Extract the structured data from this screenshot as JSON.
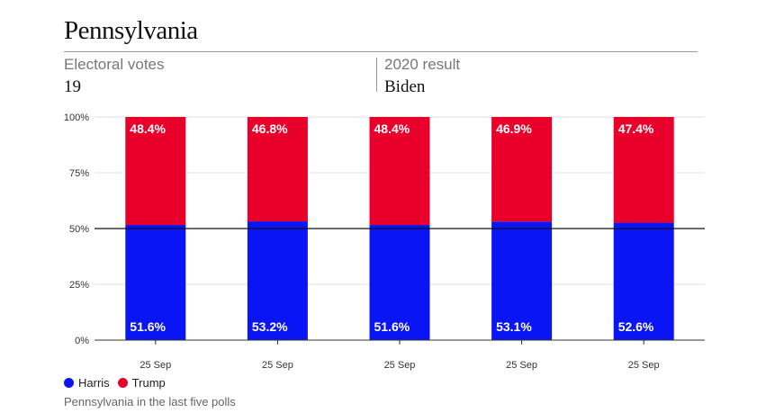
{
  "header": {
    "title": "Pennsylvania",
    "electoral_label": "Electoral votes",
    "electoral_value": "19",
    "result_label": "2020 result",
    "result_value": "Biden"
  },
  "colors": {
    "harris": "#0a15f5",
    "trump": "#e8002b"
  },
  "legend": {
    "harris": "Harris",
    "trump": "Trump"
  },
  "caption": "Pennsylvania in the last five polls",
  "chart_data": {
    "type": "bar",
    "stacked": true,
    "categories": [
      "25 Sep",
      "25 Sep",
      "25 Sep",
      "25 Sep",
      "25 Sep"
    ],
    "series": [
      {
        "name": "Harris",
        "values": [
          51.6,
          53.2,
          51.6,
          53.1,
          52.6
        ],
        "labels": [
          "51.6%",
          "53.2%",
          "51.6%",
          "53.1%",
          "52.6%"
        ]
      },
      {
        "name": "Trump",
        "values": [
          48.4,
          46.8,
          48.4,
          46.9,
          47.4
        ],
        "labels": [
          "48.4%",
          "46.8%",
          "48.4%",
          "46.9%",
          "47.4%"
        ]
      }
    ],
    "y_ticks": [
      "0%",
      "25%",
      "50%",
      "75%",
      "100%"
    ],
    "ylim": [
      0,
      100
    ],
    "reference_line": 50,
    "grid": true
  }
}
